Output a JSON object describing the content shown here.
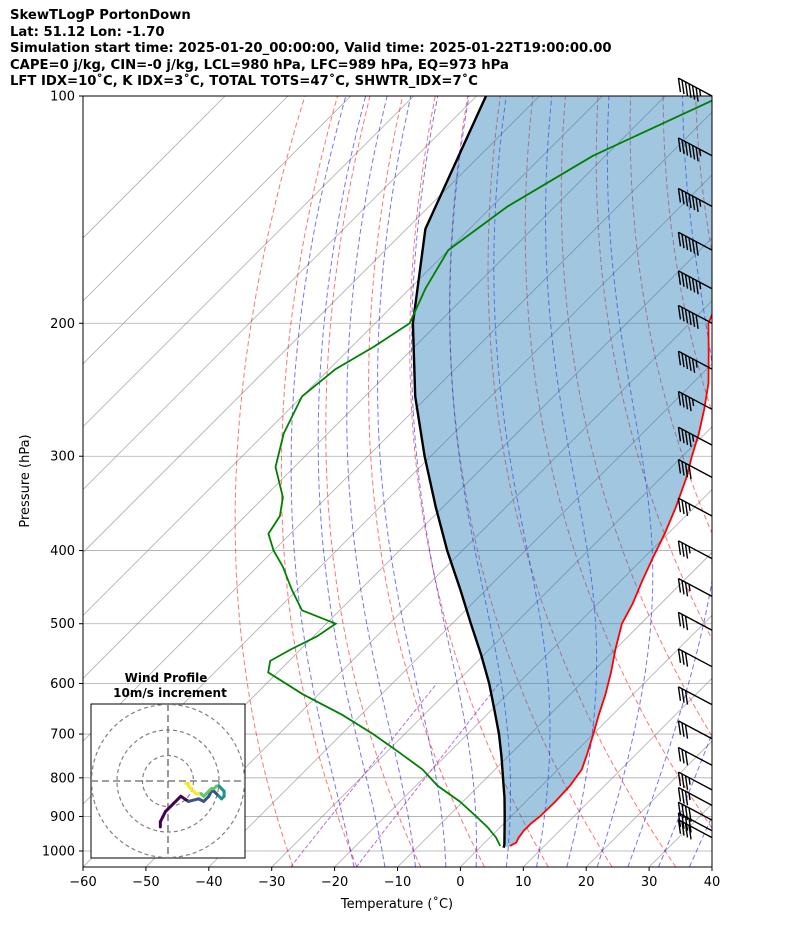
{
  "header": {
    "line1": "SkewTLogP PortonDown",
    "line2": "Lat: 51.12   Lon: -1.70",
    "line3": "Simulation start time: 2025-01-20_00:00:00, Valid time: 2025-01-22T19:00:00.00",
    "line4": "CAPE=0 j/kg, CIN=-0 j/kg, LCL=980 hPa, LFC=989 hPa, EQ=973 hPa",
    "line5": "LFT IDX=10˚C, K IDX=3˚C, TOTAL TOTS=47˚C, SHWTR_IDX=7˚C"
  },
  "chart_data": {
    "type": "line",
    "title": "SkewTLogP PortonDown",
    "xlabel": "Temperature (˚C)",
    "ylabel": "Pressure (hPa)",
    "xlim": [
      -60,
      40
    ],
    "ylim": [
      1050,
      100
    ],
    "y_scale": "log",
    "grid": true,
    "x_ticks": [
      "−60",
      "−50",
      "−40",
      "−30",
      "−20",
      "−10",
      "0",
      "10",
      "20",
      "30",
      "40"
    ],
    "y_ticks": [
      "100",
      "200",
      "300",
      "400",
      "500",
      "600",
      "700",
      "800",
      "900",
      "1000"
    ],
    "colors": {
      "temperature": "#ff0000",
      "dewpoint": "#008000",
      "parcel": "#000000",
      "dry_adiabat": "#ff0000",
      "moist_adiabat": "#0000ff",
      "mixing_ratio": "#9b30c8",
      "cape_fill": "#1f77b4",
      "isotherm": "#808080"
    },
    "series": [
      {
        "key": "temperature",
        "p": [
          985,
          975,
          960,
          940,
          920,
          900,
          860,
          820,
          780,
          740,
          700,
          660,
          620,
          580,
          540,
          500,
          470,
          440,
          410,
          380,
          350,
          320,
          300,
          280,
          260,
          240,
          220,
          200,
          180,
          160,
          140,
          120,
          100
        ],
        "t": [
          4.5,
          5.0,
          4.6,
          4.3,
          4.3,
          4.6,
          4.7,
          4.5,
          3.8,
          2.0,
          0.0,
          -2.2,
          -4.4,
          -7.0,
          -10.0,
          -13.0,
          -14.5,
          -16.5,
          -18.5,
          -20.5,
          -23.0,
          -26.0,
          -28.5,
          -31.0,
          -34.0,
          -37.5,
          -42.0,
          -47.0,
          -50.2,
          -52.5,
          -55.0,
          -57.5,
          -60.5
        ]
      },
      {
        "key": "dewpoint",
        "p": [
          985,
          960,
          930,
          900,
          860,
          820,
          780,
          740,
          700,
          660,
          620,
          580,
          560,
          540,
          520,
          500,
          480,
          450,
          420,
          400,
          380,
          360,
          340,
          310,
          280,
          250,
          230,
          215,
          200,
          180,
          160,
          140,
          120,
          100
        ],
        "t": [
          3.0,
          1.0,
          -2.0,
          -5.5,
          -10.5,
          -16.5,
          -21.5,
          -28.0,
          -35.0,
          -43.0,
          -52.5,
          -61.5,
          -63.0,
          -61.5,
          -59.5,
          -58.5,
          -66.0,
          -71.0,
          -76.0,
          -80.0,
          -83.5,
          -84.5,
          -87.0,
          -93.0,
          -97.0,
          -100.0,
          -99.0,
          -96.5,
          -94.5,
          -97.5,
          -100.0,
          -97.5,
          -92.0,
          -81.0
        ]
      },
      {
        "key": "parcel",
        "p": [
          990,
          980,
          950,
          900,
          850,
          800,
          750,
          700,
          650,
          600,
          550,
          500,
          450,
          400,
          350,
          300,
          250,
          200,
          150,
          100
        ],
        "t": [
          3.8,
          3.4,
          1.8,
          -1.0,
          -4.0,
          -7.4,
          -11.0,
          -15.0,
          -19.6,
          -24.6,
          -30.4,
          -37.0,
          -44.2,
          -52.4,
          -61.2,
          -71.0,
          -82.0,
          -94.0,
          -107.0,
          -118.5
        ]
      }
    ],
    "wind_barbs": [
      {
        "p": 100,
        "kt": 65
      },
      {
        "p": 120,
        "kt": 65
      },
      {
        "p": 140,
        "kt": 65
      },
      {
        "p": 160,
        "kt": 60
      },
      {
        "p": 180,
        "kt": 65
      },
      {
        "p": 200,
        "kt": 60
      },
      {
        "p": 230,
        "kt": 55
      },
      {
        "p": 260,
        "kt": 45
      },
      {
        "p": 290,
        "kt": 45
      },
      {
        "p": 320,
        "kt": 40
      },
      {
        "p": 360,
        "kt": 35
      },
      {
        "p": 410,
        "kt": 35
      },
      {
        "p": 460,
        "kt": 35
      },
      {
        "p": 510,
        "kt": 30
      },
      {
        "p": 570,
        "kt": 30
      },
      {
        "p": 640,
        "kt": 30
      },
      {
        "p": 710,
        "kt": 30
      },
      {
        "p": 770,
        "kt": 30
      },
      {
        "p": 830,
        "kt": 35
      },
      {
        "p": 870,
        "kt": 35
      },
      {
        "p": 910,
        "kt": 40
      },
      {
        "p": 940,
        "kt": 40
      },
      {
        "p": 960,
        "kt": 40
      }
    ],
    "hodograph": {
      "title": "Wind Profile",
      "subtitle": "10m/s increment",
      "rings_ms": [
        10,
        20,
        30
      ],
      "points_uv": [
        [
          -3,
          -18
        ],
        [
          -3,
          -16
        ],
        [
          -2,
          -14
        ],
        [
          -1,
          -12
        ],
        [
          0,
          -11
        ],
        [
          1,
          -10
        ],
        [
          2,
          -9
        ],
        [
          5,
          -6
        ],
        [
          8,
          -8
        ],
        [
          12,
          -7
        ],
        [
          14,
          -8
        ],
        [
          16,
          -6
        ],
        [
          17,
          -4
        ],
        [
          18,
          -4
        ],
        [
          19,
          -5
        ],
        [
          20,
          -6
        ],
        [
          21,
          -7
        ],
        [
          22,
          -6
        ],
        [
          22,
          -5
        ],
        [
          22,
          -4
        ],
        [
          21,
          -3
        ],
        [
          20,
          -2
        ],
        [
          19,
          -2
        ],
        [
          18,
          -3
        ],
        [
          17,
          -3
        ],
        [
          16,
          -4
        ],
        [
          15,
          -5
        ],
        [
          14,
          -6
        ],
        [
          13,
          -5
        ],
        [
          12,
          -5
        ],
        [
          11,
          -5
        ],
        [
          10,
          -4
        ],
        [
          9,
          -3
        ],
        [
          8,
          -2
        ],
        [
          8,
          -1
        ],
        [
          7,
          -1
        ],
        [
          7,
          -1
        ]
      ]
    }
  }
}
